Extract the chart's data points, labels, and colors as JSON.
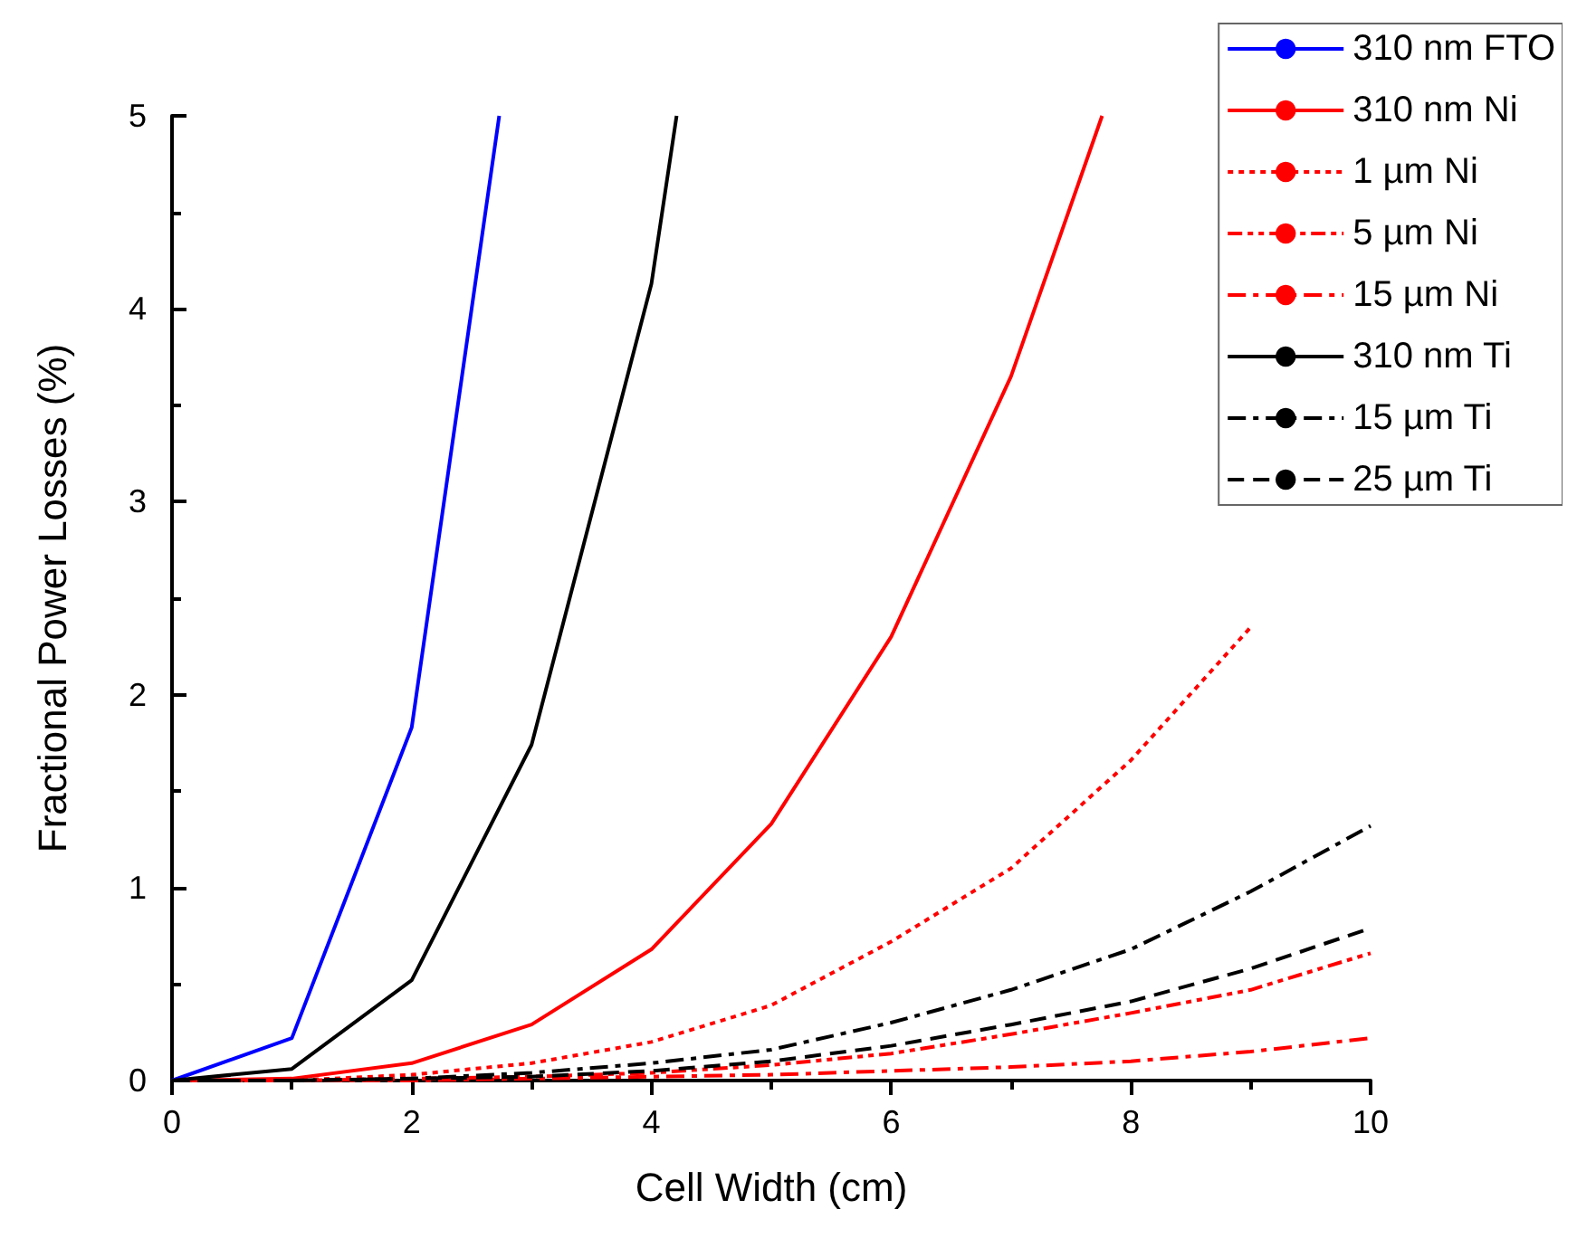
{
  "chart_data": {
    "type": "line",
    "xlabel": "Cell Width (cm)",
    "ylabel": "Fractional Power Losses (%)",
    "xlim": [
      0,
      10
    ],
    "xticks": [
      0,
      2,
      4,
      6,
      8,
      10
    ],
    "ylim": [
      0,
      5
    ],
    "yticks": [
      0,
      1,
      2,
      3,
      4,
      5
    ],
    "grid": false,
    "legend": "top right",
    "marker": "none",
    "series": [
      {
        "name": "310 nm FTO",
        "color": "#0000ff",
        "line_style": "solid",
        "x": [
          0,
          1,
          2,
          2.73
        ],
        "values": [
          0,
          0.22,
          1.83,
          5
        ]
      },
      {
        "name": "310 nm Ni",
        "color": "#ff0000",
        "line_style": "solid",
        "x": [
          0,
          1,
          2,
          3,
          4,
          5,
          6,
          7,
          7.76
        ],
        "values": [
          0,
          0.01,
          0.09,
          0.29,
          0.68,
          1.33,
          2.3,
          3.65,
          5
        ]
      },
      {
        "name": "1 µm Ni",
        "color": "#ff0000",
        "line_style": "dotted",
        "x": [
          0,
          1,
          2,
          3,
          4,
          5,
          6,
          7,
          8,
          9
        ],
        "values": [
          0,
          0,
          0.03,
          0.09,
          0.2,
          0.39,
          0.72,
          1.1,
          1.66,
          2.35
        ]
      },
      {
        "name": "5 µm Ni",
        "color": "#ff0000",
        "line_style": "dashdotdot",
        "x": [
          0,
          1,
          2,
          3,
          4,
          5,
          6,
          7,
          8,
          9,
          10
        ],
        "values": [
          0,
          0,
          0.01,
          0.02,
          0.04,
          0.08,
          0.14,
          0.24,
          0.35,
          0.47,
          0.66
        ]
      },
      {
        "name": "15 µm Ni",
        "color": "#ff0000",
        "line_style": "dashdot",
        "x": [
          0,
          1,
          2,
          3,
          4,
          5,
          6,
          7,
          8,
          9,
          10
        ],
        "values": [
          0,
          0,
          0,
          0.01,
          0.02,
          0.03,
          0.05,
          0.07,
          0.1,
          0.15,
          0.22
        ]
      },
      {
        "name": "310 nm Ti",
        "color": "#000000",
        "line_style": "solid",
        "x": [
          0,
          1,
          2,
          3,
          4,
          4.21
        ],
        "values": [
          0,
          0.06,
          0.52,
          1.74,
          4.13,
          5
        ]
      },
      {
        "name": "15 µm Ti",
        "color": "#000000",
        "line_style": "dashdot",
        "x": [
          0,
          1,
          2,
          3,
          4,
          5,
          6,
          7,
          8,
          9,
          10
        ],
        "values": [
          0,
          0,
          0.01,
          0.04,
          0.09,
          0.16,
          0.3,
          0.47,
          0.68,
          0.98,
          1.32
        ]
      },
      {
        "name": "25 µm Ti",
        "color": "#000000",
        "line_style": "dashed",
        "x": [
          0,
          1,
          2,
          3,
          4,
          5,
          6,
          7,
          8,
          9,
          10
        ],
        "values": [
          0,
          0,
          0.01,
          0.02,
          0.05,
          0.1,
          0.18,
          0.29,
          0.41,
          0.58,
          0.79
        ]
      }
    ]
  }
}
